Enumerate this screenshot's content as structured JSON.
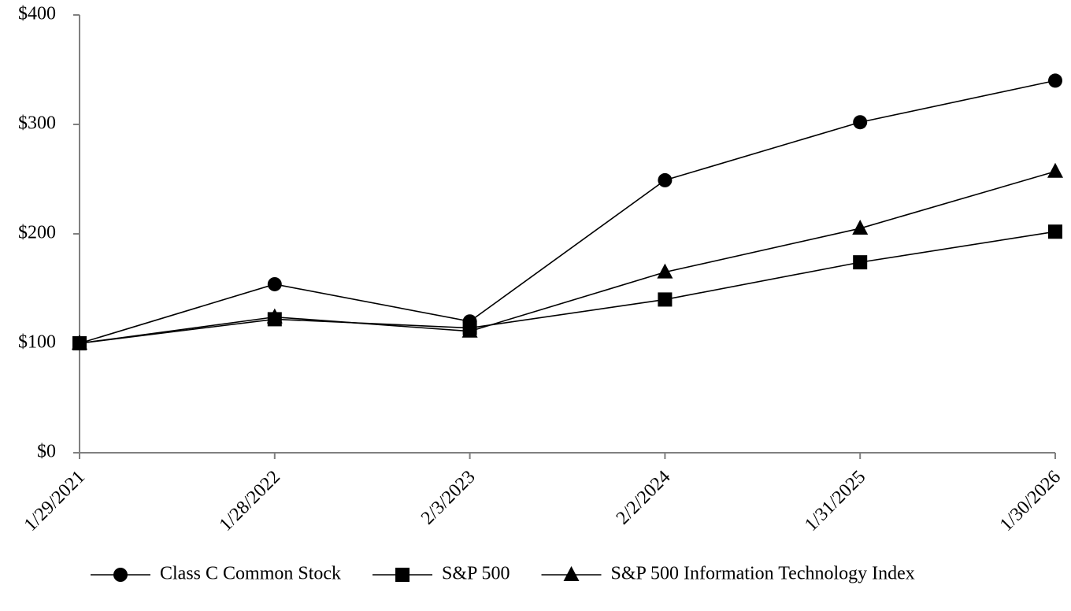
{
  "chart_data": {
    "type": "line",
    "categories": [
      "1/29/2021",
      "1/28/2022",
      "2/3/2023",
      "2/2/2024",
      "1/31/2025",
      "1/30/2026"
    ],
    "series": [
      {
        "name": "Class C Common Stock",
        "color": "#000000",
        "marker": "circle",
        "values": [
          100,
          154,
          120,
          249,
          302,
          340
        ]
      },
      {
        "name": "S&P 500",
        "color": "#000000",
        "marker": "square",
        "values": [
          100,
          122,
          114,
          140,
          174,
          202
        ]
      },
      {
        "name": "S&P 500 Information Technology Index",
        "color": "#000000",
        "marker": "triangle",
        "values": [
          100,
          124,
          111,
          165,
          205,
          257
        ]
      }
    ],
    "ylim": [
      0,
      400
    ],
    "yticks": [
      {
        "value": 0,
        "label": "$0"
      },
      {
        "value": 100,
        "label": "$100"
      },
      {
        "value": 200,
        "label": "$200"
      },
      {
        "value": 300,
        "label": "$300"
      },
      {
        "value": 400,
        "label": "$400"
      }
    ],
    "grid": false,
    "legend": "bottom"
  }
}
